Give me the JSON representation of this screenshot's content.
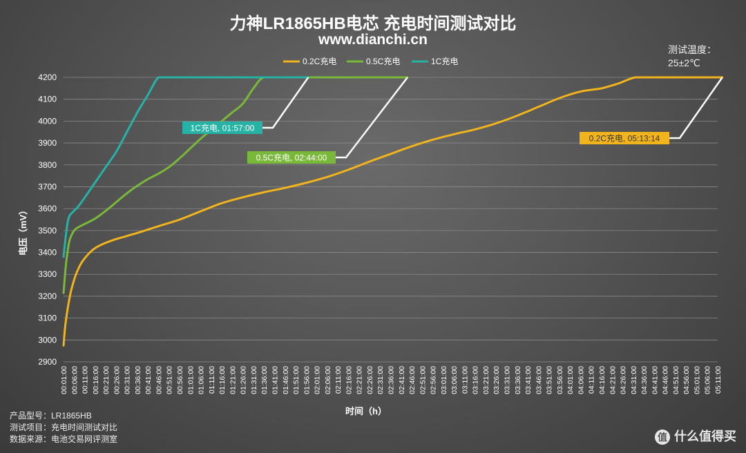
{
  "header": {
    "title": "力神LR1865HB电芯 充电时间测试对比",
    "subtitle": "www.dianchi.cn"
  },
  "temperature": {
    "label": "测试温度：",
    "value": "25±2℃"
  },
  "footer": {
    "model": "产品型号：LR1865HB",
    "item": "测试项目：充电时间测试对比",
    "source": "数据来源：电池交易网评测室"
  },
  "watermark": {
    "icon": "值",
    "text": "什么值得买"
  },
  "colors": {
    "0.2C": "#f2b41c",
    "0.5C": "#7ab83a",
    "1C": "#26b3a6"
  },
  "chart_data": {
    "type": "line",
    "xlabel": "时间（h）",
    "ylabel": "电压（mV）",
    "ylim": [
      2900,
      4200
    ],
    "yticks": [
      2900,
      3000,
      3100,
      3200,
      3300,
      3400,
      3500,
      3600,
      3700,
      3800,
      3900,
      4000,
      4100,
      4200
    ],
    "xlim_minutes": [
      1,
      311
    ],
    "x_tick_labels": [
      "00:01:00",
      "00:06:00",
      "00:11:00",
      "00:16:00",
      "00:21:00",
      "00:26:00",
      "00:31:00",
      "00:36:00",
      "00:41:00",
      "00:46:00",
      "00:51:00",
      "00:56:00",
      "01:01:00",
      "01:06:00",
      "01:11:00",
      "01:16:00",
      "01:21:00",
      "01:26:00",
      "01:31:00",
      "01:36:00",
      "01:41:00",
      "01:46:00",
      "01:51:00",
      "01:56:00",
      "02:01:00",
      "02:06:00",
      "02:11:00",
      "02:16:00",
      "02:21:00",
      "02:26:00",
      "02:31:00",
      "02:36:00",
      "02:41:00",
      "02:46:00",
      "02:51:00",
      "02:56:00",
      "03:01:00",
      "03:06:00",
      "03:11:00",
      "03:16:00",
      "03:21:00",
      "03:26:00",
      "03:31:00",
      "03:36:00",
      "03:41:00",
      "03:46:00",
      "03:51:00",
      "03:56:00",
      "04:01:00",
      "04:06:00",
      "04:11:00",
      "04:16:00",
      "04:21:00",
      "04:26:00",
      "04:31:00",
      "04:36:00",
      "04:41:00",
      "04:46:00",
      "04:51:00",
      "04:56:00",
      "05:01:00",
      "05:06:00",
      "05:11:00"
    ],
    "legend_position": "top-center",
    "series": [
      {
        "name": "0.2C充电",
        "key": "0.2C",
        "x_minutes": [
          1,
          2,
          4,
          6,
          8,
          10,
          13,
          16,
          20,
          25,
          31,
          38,
          46,
          56,
          66,
          76,
          86,
          96,
          106,
          116,
          126,
          136,
          146,
          156,
          166,
          176,
          186,
          196,
          206,
          216,
          226,
          236,
          246,
          256,
          264,
          272,
          281,
          291,
          301,
          313.2
        ],
        "values": [
          2975,
          3080,
          3200,
          3275,
          3325,
          3360,
          3395,
          3420,
          3440,
          3458,
          3475,
          3495,
          3520,
          3550,
          3588,
          3625,
          3652,
          3675,
          3695,
          3718,
          3745,
          3778,
          3815,
          3850,
          3885,
          3915,
          3940,
          3962,
          3990,
          4025,
          4065,
          4105,
          4135,
          4150,
          4172,
          4200,
          4200,
          4200,
          4200,
          4200
        ]
      },
      {
        "name": "0.5C充电",
        "key": "0.5C",
        "x_minutes": [
          1,
          2,
          3,
          4,
          6,
          8,
          11,
          16,
          21,
          26,
          31,
          36,
          41,
          46,
          51,
          56,
          61,
          66,
          71,
          76,
          81,
          86,
          91,
          96,
          106,
          116,
          126,
          136,
          146,
          156,
          164
        ],
        "values": [
          3215,
          3330,
          3410,
          3460,
          3500,
          3515,
          3530,
          3555,
          3590,
          3630,
          3670,
          3705,
          3735,
          3760,
          3790,
          3830,
          3875,
          3920,
          3960,
          4000,
          4040,
          4080,
          4150,
          4200,
          4200,
          4200,
          4200,
          4200,
          4200,
          4200,
          4200
        ]
      },
      {
        "name": "1C充电",
        "key": "1C",
        "x_minutes": [
          1,
          2,
          3,
          4,
          6,
          8,
          11,
          16,
          21,
          26,
          31,
          36,
          41,
          46,
          51,
          56,
          61,
          66,
          76,
          86,
          96,
          106,
          117
        ],
        "values": [
          3380,
          3470,
          3540,
          3570,
          3590,
          3610,
          3650,
          3720,
          3790,
          3860,
          3950,
          4040,
          4120,
          4200,
          4200,
          4200,
          4200,
          4200,
          4200,
          4200,
          4200,
          4200,
          4200
        ]
      }
    ],
    "annotations": [
      {
        "text": "1C充电, 01:57:00",
        "key": "1C",
        "at_minutes": 117
      },
      {
        "text": "0.5C充电, 02:44:00",
        "key": "0.5C",
        "at_minutes": 164
      },
      {
        "text": "0.2C充电, 05:13:14",
        "key": "0.2C",
        "at_minutes": 313.2
      }
    ]
  }
}
